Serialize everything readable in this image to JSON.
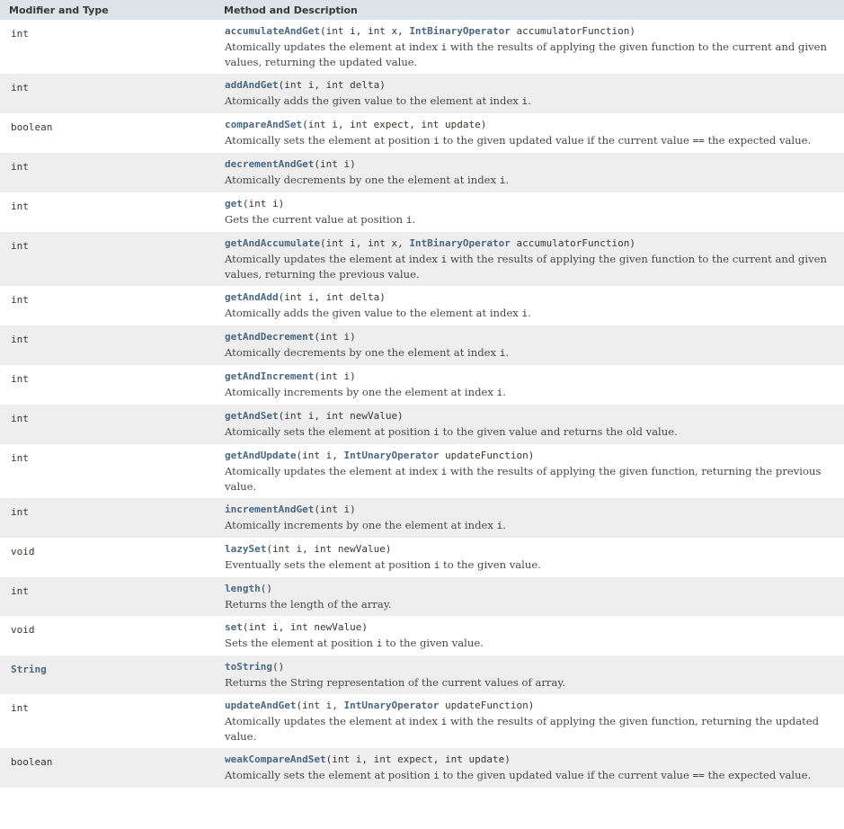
{
  "header": {
    "col1": "Modifier and Type",
    "col2": "Method and Description"
  },
  "methods": [
    {
      "type": "int",
      "name": "accumulateAndGet",
      "params": [
        [
          "",
          "(int i, int x, "
        ],
        [
          "t",
          "IntBinaryOperator"
        ],
        [
          "",
          " accumulatorFunction)"
        ]
      ],
      "desc": [
        [
          "",
          "Atomically updates the element at index "
        ],
        [
          "c",
          "i"
        ],
        [
          "",
          " with the results of applying the given function to the current and given values, returning the updated value."
        ]
      ]
    },
    {
      "type": "int",
      "name": "addAndGet",
      "params": [
        [
          "",
          "(int i, int delta)"
        ]
      ],
      "desc": [
        [
          "",
          "Atomically adds the given value to the element at index "
        ],
        [
          "c",
          "i"
        ],
        [
          "",
          "."
        ]
      ]
    },
    {
      "type": "boolean",
      "name": "compareAndSet",
      "params": [
        [
          "",
          "(int i, int expect, int update)"
        ]
      ],
      "desc": [
        [
          "",
          "Atomically sets the element at position "
        ],
        [
          "c",
          "i"
        ],
        [
          "",
          " to the given updated value if the current value "
        ],
        [
          "c",
          "=="
        ],
        [
          "",
          " the expected value."
        ]
      ]
    },
    {
      "type": "int",
      "name": "decrementAndGet",
      "params": [
        [
          "",
          "(int i)"
        ]
      ],
      "desc": [
        [
          "",
          "Atomically decrements by one the element at index "
        ],
        [
          "c",
          "i"
        ],
        [
          "",
          "."
        ]
      ]
    },
    {
      "type": "int",
      "name": "get",
      "params": [
        [
          "",
          "(int i)"
        ]
      ],
      "desc": [
        [
          "",
          "Gets the current value at position "
        ],
        [
          "c",
          "i"
        ],
        [
          "",
          "."
        ]
      ]
    },
    {
      "type": "int",
      "name": "getAndAccumulate",
      "params": [
        [
          "",
          "(int i, int x, "
        ],
        [
          "t",
          "IntBinaryOperator"
        ],
        [
          "",
          " accumulatorFunction)"
        ]
      ],
      "desc": [
        [
          "",
          "Atomically updates the element at index "
        ],
        [
          "c",
          "i"
        ],
        [
          "",
          " with the results of applying the given function to the current and given values, returning the previous value."
        ]
      ]
    },
    {
      "type": "int",
      "name": "getAndAdd",
      "params": [
        [
          "",
          "(int i, int delta)"
        ]
      ],
      "desc": [
        [
          "",
          "Atomically adds the given value to the element at index "
        ],
        [
          "c",
          "i"
        ],
        [
          "",
          "."
        ]
      ]
    },
    {
      "type": "int",
      "name": "getAndDecrement",
      "params": [
        [
          "",
          "(int i)"
        ]
      ],
      "desc": [
        [
          "",
          "Atomically decrements by one the element at index "
        ],
        [
          "c",
          "i"
        ],
        [
          "",
          "."
        ]
      ]
    },
    {
      "type": "int",
      "name": "getAndIncrement",
      "params": [
        [
          "",
          "(int i)"
        ]
      ],
      "desc": [
        [
          "",
          "Atomically increments by one the element at index "
        ],
        [
          "c",
          "i"
        ],
        [
          "",
          "."
        ]
      ]
    },
    {
      "type": "int",
      "name": "getAndSet",
      "params": [
        [
          "",
          "(int i, int newValue)"
        ]
      ],
      "desc": [
        [
          "",
          "Atomically sets the element at position "
        ],
        [
          "c",
          "i"
        ],
        [
          "",
          " to the given value and returns the old value."
        ]
      ]
    },
    {
      "type": "int",
      "name": "getAndUpdate",
      "params": [
        [
          "",
          "(int i, "
        ],
        [
          "t",
          "IntUnaryOperator"
        ],
        [
          "",
          " updateFunction)"
        ]
      ],
      "desc": [
        [
          "",
          "Atomically updates the element at index "
        ],
        [
          "c",
          "i"
        ],
        [
          "",
          " with the results of applying the given function, returning the previous value."
        ]
      ]
    },
    {
      "type": "int",
      "name": "incrementAndGet",
      "params": [
        [
          "",
          "(int i)"
        ]
      ],
      "desc": [
        [
          "",
          "Atomically increments by one the element at index "
        ],
        [
          "c",
          "i"
        ],
        [
          "",
          "."
        ]
      ]
    },
    {
      "type": "void",
      "name": "lazySet",
      "params": [
        [
          "",
          "(int i, int newValue)"
        ]
      ],
      "desc": [
        [
          "",
          "Eventually sets the element at position "
        ],
        [
          "c",
          "i"
        ],
        [
          "",
          " to the given value."
        ]
      ]
    },
    {
      "type": "int",
      "name": "length",
      "params": [
        [
          "",
          "()"
        ]
      ],
      "desc": [
        [
          "",
          "Returns the length of the array."
        ]
      ]
    },
    {
      "type": "void",
      "name": "set",
      "params": [
        [
          "",
          "(int i, int newValue)"
        ]
      ],
      "desc": [
        [
          "",
          "Sets the element at position "
        ],
        [
          "c",
          "i"
        ],
        [
          "",
          " to the given value."
        ]
      ]
    },
    {
      "type": "String",
      "type_link": true,
      "name": "toString",
      "params": [
        [
          "",
          "()"
        ]
      ],
      "desc": [
        [
          "",
          "Returns the String representation of the current values of array."
        ]
      ]
    },
    {
      "type": "int",
      "name": "updateAndGet",
      "params": [
        [
          "",
          "(int i, "
        ],
        [
          "t",
          "IntUnaryOperator"
        ],
        [
          "",
          " updateFunction)"
        ]
      ],
      "desc": [
        [
          "",
          "Atomically updates the element at index "
        ],
        [
          "c",
          "i"
        ],
        [
          "",
          " with the results of applying the given function, returning the updated value."
        ]
      ]
    },
    {
      "type": "boolean",
      "name": "weakCompareAndSet",
      "params": [
        [
          "",
          "(int i, int expect, int update)"
        ]
      ],
      "desc": [
        [
          "",
          "Atomically sets the element at position "
        ],
        [
          "c",
          "i"
        ],
        [
          "",
          " to the given updated value if the current value "
        ],
        [
          "c",
          "=="
        ],
        [
          "",
          " the expected value."
        ]
      ]
    }
  ]
}
